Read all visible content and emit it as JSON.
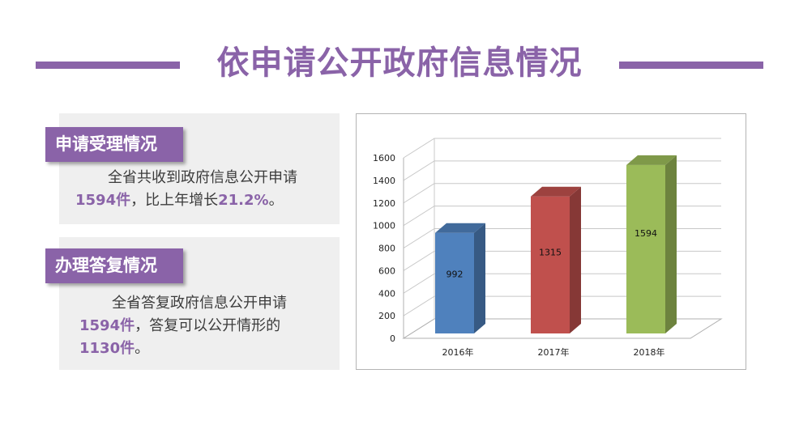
{
  "header": {
    "title": "依申请公开政府信息情况"
  },
  "sections": [
    {
      "tag": "申请受理情况",
      "line1": "全省共收到政府信息公开申请",
      "hl1": "1594件",
      "mid1": "，比上年增长",
      "hl2": "21.2%",
      "end1": "。"
    },
    {
      "tag": "办理答复情况",
      "line1": "全省答复政府信息公开申请",
      "hl1": "1594件",
      "mid1": "，答复可以公开情形的",
      "hl2": "1130件",
      "end1": "。"
    }
  ],
  "chart_data": {
    "type": "bar",
    "categories": [
      "2016年",
      "2017年",
      "2018年"
    ],
    "values": [
      992,
      1315,
      1594
    ],
    "colors": [
      "#4f81bd",
      "#c0504d",
      "#9bbb59"
    ],
    "ylim": [
      0,
      1600
    ],
    "yticks": [
      0,
      200,
      400,
      600,
      800,
      1000,
      1200,
      1400,
      1600
    ],
    "grid": true,
    "three_d": true
  }
}
